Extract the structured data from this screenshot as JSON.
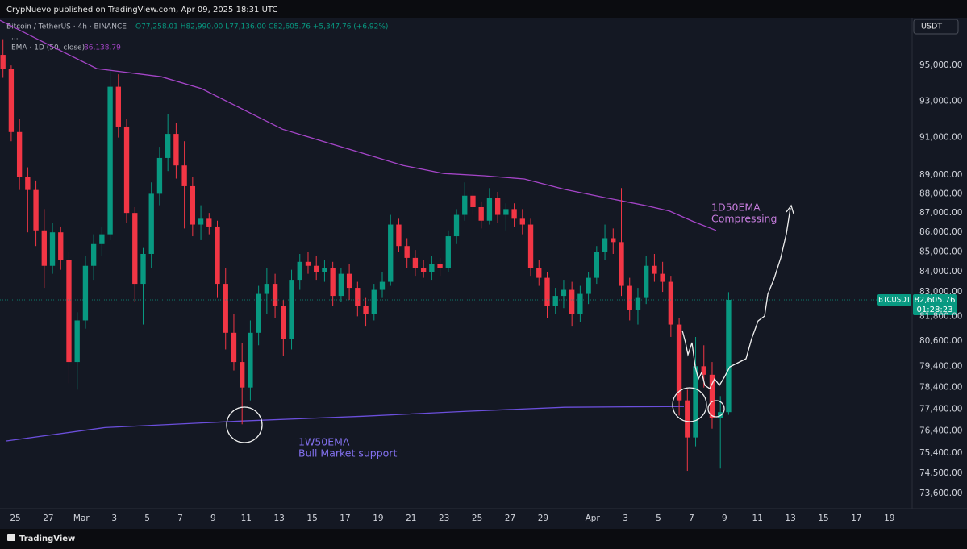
{
  "header": {
    "text": "CrypNuevo published on TradingView.com, Apr 09, 2025 18:31 UTC"
  },
  "legend": {
    "symbol": "Bitcoin / TetherUS · 4h · BINANCE",
    "ohlc": "O77,258.01 H82,990.00 L77,136.00 C82,605.76 +5,347.76 (+6.92%)",
    "more": "...",
    "ema_name": "EMA · 1D (50, close)",
    "ema_value": "86,138.79"
  },
  "currency_button": "USDT",
  "price_tag": {
    "symbol": "BTCUSDT",
    "price": "82,605.76",
    "countdown": "01:28:23"
  },
  "footer": "TradingView",
  "chart_data": {
    "type": "candlestick",
    "log_scale": true,
    "grid": false,
    "up_color": "#089981",
    "down_color": "#f23645",
    "xlim": [
      -0.93,
      54.33
    ],
    "ylim": [
      72970,
      97740
    ],
    "xticks": [
      {
        "value": 0,
        "label": "25"
      },
      {
        "value": 2,
        "label": "27"
      },
      {
        "value": 4,
        "label": "Mar"
      },
      {
        "value": 6,
        "label": "3"
      },
      {
        "value": 8,
        "label": "5"
      },
      {
        "value": 10,
        "label": "7"
      },
      {
        "value": 12,
        "label": "9"
      },
      {
        "value": 14,
        "label": "11"
      },
      {
        "value": 16,
        "label": "13"
      },
      {
        "value": 18,
        "label": "15"
      },
      {
        "value": 20,
        "label": "17"
      },
      {
        "value": 22,
        "label": "19"
      },
      {
        "value": 24,
        "label": "21"
      },
      {
        "value": 26,
        "label": "23"
      },
      {
        "value": 28,
        "label": "25"
      },
      {
        "value": 30,
        "label": "27"
      },
      {
        "value": 32,
        "label": "29"
      },
      {
        "value": 35,
        "label": "Apr"
      },
      {
        "value": 37,
        "label": "3"
      },
      {
        "value": 39,
        "label": "5"
      },
      {
        "value": 41,
        "label": "7"
      },
      {
        "value": 43,
        "label": "9"
      },
      {
        "value": 45,
        "label": "11"
      },
      {
        "value": 47,
        "label": "13"
      },
      {
        "value": 49,
        "label": "15"
      },
      {
        "value": 51,
        "label": "17"
      },
      {
        "value": 53,
        "label": "19"
      }
    ],
    "yticks": [
      {
        "value": 95000,
        "label": "95,000.00"
      },
      {
        "value": 93000,
        "label": "93,000.00"
      },
      {
        "value": 91000,
        "label": "91,000.00"
      },
      {
        "value": 89000,
        "label": "89,000.00"
      },
      {
        "value": 88000,
        "label": "88,000.00"
      },
      {
        "value": 87000,
        "label": "87,000.00"
      },
      {
        "value": 86000,
        "label": "86,000.00"
      },
      {
        "value": 85000,
        "label": "85,000.00"
      },
      {
        "value": 84000,
        "label": "84,000.00"
      },
      {
        "value": 83000,
        "label": "83,000.00"
      },
      {
        "value": 81800,
        "label": "81,800.00"
      },
      {
        "value": 80600,
        "label": "80,600.00"
      },
      {
        "value": 79400,
        "label": "79,400.00"
      },
      {
        "value": 78400,
        "label": "78,400.00"
      },
      {
        "value": 77400,
        "label": "77,400.00"
      },
      {
        "value": 76400,
        "label": "76,400.00"
      },
      {
        "value": 75400,
        "label": "75,400.00"
      },
      {
        "value": 74500,
        "label": "74,500.00"
      },
      {
        "value": 73600,
        "label": "73,600.00"
      }
    ],
    "x": [
      -0.75,
      -0.25,
      0.25,
      0.75,
      1.25,
      1.75,
      2.25,
      2.75,
      3.25,
      3.75,
      4.25,
      4.75,
      5.25,
      5.75,
      6.25,
      6.75,
      7.25,
      7.75,
      8.25,
      8.75,
      9.25,
      9.75,
      10.25,
      10.75,
      11.25,
      11.75,
      12.25,
      12.75,
      13.25,
      13.75,
      14.25,
      14.75,
      15.25,
      15.75,
      16.25,
      16.75,
      17.25,
      17.75,
      18.25,
      18.75,
      19.25,
      19.75,
      20.25,
      20.75,
      21.25,
      21.75,
      22.25,
      22.75,
      23.25,
      23.75,
      24.25,
      24.75,
      25.25,
      25.75,
      26.25,
      26.75,
      27.25,
      27.75,
      28.25,
      28.75,
      29.25,
      29.75,
      30.25,
      30.75,
      31.25,
      31.75,
      32.25,
      32.75,
      33.25,
      33.75,
      34.25,
      34.75,
      35.25,
      35.75,
      36.25,
      36.75,
      37.25,
      37.75,
      38.25,
      38.75,
      39.25,
      39.75,
      40.25,
      40.75,
      41.25,
      41.75,
      42.25,
      42.75,
      43.25
    ],
    "open": [
      95600,
      94800,
      91300,
      88900,
      88200,
      86100,
      84300,
      86000,
      84600,
      79600,
      81600,
      84300,
      85400,
      85900,
      93800,
      91600,
      87000,
      83400,
      84900,
      88000,
      89900,
      91200,
      89500,
      88400,
      86400,
      86700,
      86300,
      83400,
      81000,
      79600,
      78400,
      81000,
      82900,
      83400,
      82300,
      80700,
      83600,
      84500,
      84300,
      84000,
      84200,
      82800,
      83900,
      83200,
      82300,
      81900,
      83100,
      83500,
      86400,
      85300,
      84700,
      84200,
      84000,
      84400,
      84200,
      85800,
      86900,
      87900,
      87300,
      86600,
      87800,
      86900,
      87200,
      86700,
      86400,
      84200,
      83700,
      82300,
      82800,
      83100,
      81900,
      82900,
      83700,
      85000,
      85700,
      85500,
      83300,
      82100,
      82700,
      84300,
      83900,
      83500,
      81400,
      77800,
      76100,
      79400,
      79000,
      77000,
      77258.01
    ],
    "high": [
      96500,
      95000,
      92000,
      89400,
      88700,
      87200,
      86500,
      86300,
      85000,
      82000,
      84800,
      85900,
      86300,
      94900,
      94500,
      92000,
      87300,
      85200,
      88600,
      90500,
      92300,
      91800,
      90800,
      88900,
      87400,
      87000,
      86600,
      84200,
      81900,
      80500,
      81600,
      83300,
      84200,
      83900,
      82600,
      84100,
      84900,
      85000,
      84800,
      84600,
      84500,
      84200,
      84400,
      83500,
      82700,
      83400,
      84000,
      86900,
      86700,
      85700,
      85100,
      84600,
      84800,
      84700,
      86100,
      87200,
      88600,
      88200,
      87600,
      88300,
      88100,
      87500,
      87500,
      87200,
      86700,
      84600,
      84000,
      83200,
      83600,
      83500,
      83300,
      84000,
      85300,
      86400,
      86200,
      88300,
      83700,
      83200,
      84800,
      84900,
      84500,
      83800,
      81700,
      78300,
      80800,
      80400,
      79600,
      78000,
      82990
    ],
    "low": [
      94300,
      90800,
      88200,
      86000,
      85300,
      83200,
      83900,
      84100,
      78600,
      78300,
      81200,
      83600,
      84800,
      85600,
      91000,
      86500,
      82500,
      81400,
      84200,
      87400,
      89200,
      88800,
      86200,
      85800,
      85600,
      85900,
      82700,
      80200,
      79200,
      76700,
      77800,
      80400,
      81900,
      81700,
      79900,
      80200,
      83100,
      83900,
      83600,
      83500,
      82300,
      82500,
      82600,
      81800,
      81300,
      81600,
      82700,
      83300,
      85000,
      84200,
      83800,
      83700,
      83600,
      83800,
      84000,
      85400,
      86600,
      86900,
      86200,
      86400,
      86500,
      86100,
      86300,
      85900,
      83800,
      83300,
      81700,
      81900,
      82200,
      81300,
      81500,
      82400,
      83400,
      84600,
      84900,
      82800,
      81600,
      81400,
      82400,
      83500,
      83000,
      80800,
      77100,
      74600,
      75700,
      78400,
      76500,
      74700,
      77136
    ],
    "close": [
      94800,
      91300,
      88900,
      88200,
      86100,
      84300,
      86000,
      84600,
      79600,
      81600,
      84300,
      85400,
      85900,
      93800,
      91600,
      87000,
      83400,
      84900,
      88000,
      89900,
      91200,
      89500,
      88400,
      86400,
      86700,
      86300,
      83400,
      81000,
      79600,
      78400,
      81000,
      82900,
      83400,
      82300,
      80700,
      83600,
      84500,
      84300,
      84000,
      84200,
      82800,
      83900,
      83200,
      82300,
      81900,
      83100,
      83500,
      86400,
      85300,
      84700,
      84200,
      84000,
      84400,
      84200,
      85800,
      86900,
      87900,
      87300,
      86600,
      87800,
      86900,
      87200,
      86700,
      86400,
      84200,
      83700,
      82300,
      82800,
      83100,
      81900,
      82900,
      83700,
      85000,
      85700,
      85500,
      83300,
      82100,
      82700,
      84300,
      83900,
      83500,
      81400,
      77800,
      76100,
      79400,
      79000,
      77000,
      77258.01,
      82605.76
    ],
    "lines": [
      {
        "color": "#a545c8",
        "x": [
          -0.93,
          2.0,
          4.94,
          8.85,
          11.3,
          13.74,
          16.19,
          18.63,
          21.08,
          23.52,
          25.97,
          28.41,
          30.86,
          33.3,
          35.75,
          38.19,
          39.66,
          41.12,
          42.49
        ],
        "values": [
          97590,
          96190,
          94820,
          94360,
          93690,
          92570,
          91460,
          90800,
          90150,
          89500,
          89070,
          88950,
          88780,
          88230,
          87800,
          87390,
          87100,
          86550,
          86100
        ]
      },
      {
        "color": "#6b4fdc",
        "x": [
          -0.54,
          5.43,
          13.74,
          21.08,
          27.43,
          33.3,
          40.54
        ],
        "values": [
          75940,
          76550,
          76850,
          77070,
          77300,
          77480,
          77520
        ]
      }
    ],
    "annotations": [
      {
        "text": "1D50EMA",
        "color": "#c77dde"
      },
      {
        "text": "Compressing",
        "color": "#c77dde"
      },
      {
        "text": "1W50EMA",
        "color": "#8270ee"
      },
      {
        "text": "Bull Market support",
        "color": "#8270ee"
      }
    ]
  }
}
